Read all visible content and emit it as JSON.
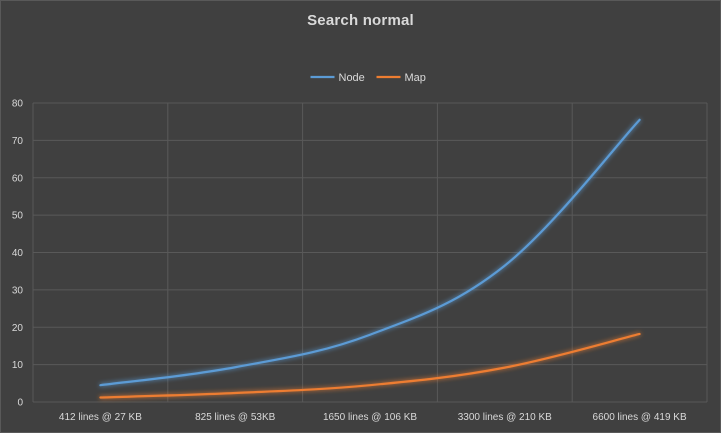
{
  "chart_data": {
    "type": "line",
    "title": "Search normal",
    "categories": [
      "412 lines @ 27 KB",
      "825 lines @ 53KB",
      "1650 lines @ 106 KB",
      "3300 lines @ 210 KB",
      "6600 lines @ 419 KB"
    ],
    "series": [
      {
        "name": "Node",
        "color": "#5b9bd5",
        "values": [
          4.5,
          9.3,
          18.0,
          36.5,
          75.5
        ]
      },
      {
        "name": "Map",
        "color": "#ed7d31",
        "values": [
          1.2,
          2.4,
          4.5,
          9.2,
          18.2
        ]
      }
    ],
    "ylim": [
      0,
      80
    ],
    "yticks": [
      0,
      10,
      20,
      30,
      40,
      50,
      60,
      70,
      80
    ],
    "xlabel": "",
    "ylabel": "",
    "grid": true,
    "legend_position": "top"
  }
}
